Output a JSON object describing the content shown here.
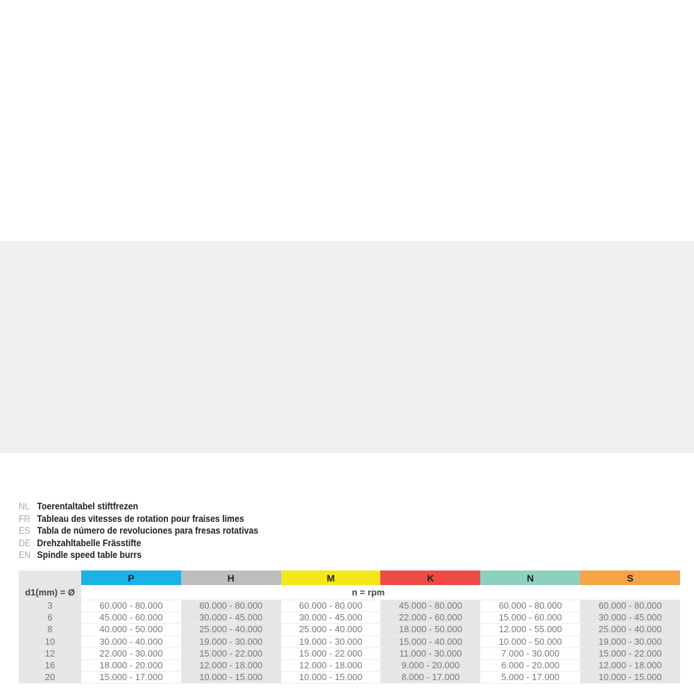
{
  "titles": [
    {
      "code": "NL",
      "text": "Toerentaltabel stiftfrezen"
    },
    {
      "code": "FR",
      "text": "Tableau des vitesses de rotation pour fraises limes"
    },
    {
      "code": "ES",
      "text": "Tabla de número de revoluciones para fresas rotativas"
    },
    {
      "code": "DE",
      "text": "Drehzahltabelle Frässtifte"
    },
    {
      "code": "EN",
      "text": "Spindle speed table burrs"
    }
  ],
  "table": {
    "row_header": "d1(mm) = Ø",
    "unit": "n = rpm",
    "columns": [
      {
        "label": "P",
        "color": "#1cb2e8"
      },
      {
        "label": "H",
        "color": "#bdbdbf"
      },
      {
        "label": "M",
        "color": "#f4e81c"
      },
      {
        "label": "K",
        "color": "#ee4b47"
      },
      {
        "label": "N",
        "color": "#8dd0c0"
      },
      {
        "label": "S",
        "color": "#f5a346"
      }
    ],
    "rows": [
      {
        "d": "3",
        "v": [
          "60.000 - 80.000",
          "60.000 - 80.000",
          "60.000 - 80.000",
          "45.000 - 80.000",
          "60.000 - 80.000",
          "60.000 - 80.000"
        ]
      },
      {
        "d": "6",
        "v": [
          "45.000 - 60.000",
          "30.000 - 45.000",
          "30.000 - 45.000",
          "22.000 - 60.000",
          "15.000 - 60.000",
          "30.000 - 45.000"
        ]
      },
      {
        "d": "8",
        "v": [
          "40.000 - 50.000",
          "25.000 - 40.000",
          "25.000 - 40.000",
          "18.000 - 50.000",
          "12.000 - 55.000",
          "25.000 - 40.000"
        ]
      },
      {
        "d": "10",
        "v": [
          "30.000 - 40.000",
          "19.000 - 30.000",
          "19.000 - 30.000",
          "15.000 - 40.000",
          "10.000 - 50.000",
          "19.000 - 30.000"
        ]
      },
      {
        "d": "12",
        "v": [
          "22.000 - 30.000",
          "15.000 - 22.000",
          "15.000 - 22.000",
          "11.000 - 30.000",
          "7.000 - 30.000",
          "15.000 - 22.000"
        ]
      },
      {
        "d": "16",
        "v": [
          "18.000 - 20.000",
          "12.000 - 18.000",
          "12.000 - 18.000",
          "9.000 - 20.000",
          "6.000 - 20.000",
          "12.000 - 18.000"
        ]
      },
      {
        "d": "20",
        "v": [
          "15.000 - 17.000",
          "10.000 - 15.000",
          "10.000 - 15.000",
          "8.000 - 17.000",
          "5.000 - 17.000",
          "10.000 - 15.000"
        ]
      }
    ]
  }
}
